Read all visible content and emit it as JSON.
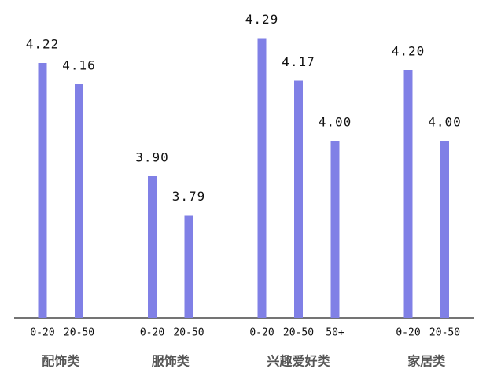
{
  "chart_data": {
    "type": "bar",
    "color": "#8080e6",
    "ylim": [
      3.5,
      4.3
    ],
    "groups": [
      {
        "name": "配饰类",
        "categories": [
          "0-20",
          "20-50"
        ],
        "values": [
          4.22,
          4.16
        ],
        "value_labels": [
          "4.22",
          "4.16"
        ]
      },
      {
        "name": "服饰类",
        "categories": [
          "0-20",
          "20-50"
        ],
        "values": [
          3.9,
          3.79
        ],
        "value_labels": [
          "3.90",
          "3.79"
        ]
      },
      {
        "name": "兴趣爱好类",
        "categories": [
          "0-20",
          "20-50",
          "50+"
        ],
        "values": [
          4.29,
          4.17,
          4.0
        ],
        "value_labels": [
          "4.29",
          "4.17",
          "4.00"
        ]
      },
      {
        "name": "家居类",
        "categories": [
          "0-20",
          "20-50"
        ],
        "values": [
          4.2,
          4.0
        ],
        "value_labels": [
          "4.20",
          "4.00"
        ]
      }
    ]
  }
}
